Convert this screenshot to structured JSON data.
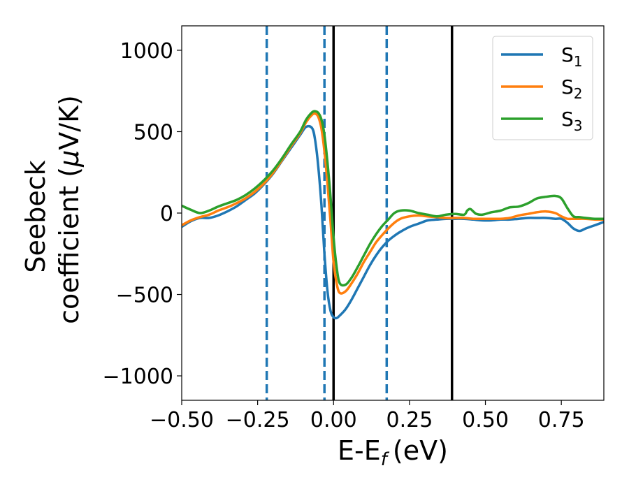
{
  "chart_data": {
    "type": "line",
    "xlabel": "E-E",
    "xlabel_sub": "f",
    "xlabel_unit": "(eV)",
    "ylabel_line1": "Seebeck",
    "ylabel_line2": "coefficient  (",
    "ylabel_mu": "μ",
    "ylabel_unit": "V/K)",
    "xlim": [
      -0.5,
      0.89
    ],
    "ylim": [
      -1150,
      1150
    ],
    "xticks": [
      -0.5,
      -0.25,
      0.0,
      0.25,
      0.5,
      0.75
    ],
    "xtick_labels": [
      "−0.50",
      "−0.25",
      "0.00",
      "0.25",
      "0.50",
      "0.75"
    ],
    "yticks": [
      -1000,
      -500,
      0,
      500,
      1000
    ],
    "ytick_labels": [
      "−1000",
      "−500",
      "0",
      "500",
      "1000"
    ],
    "grid": false,
    "legend_position": "top-right",
    "series": [
      {
        "name": "S",
        "sub": "1",
        "color": "#1f77b4",
        "x": [
          -0.5,
          -0.47,
          -0.44,
          -0.41,
          -0.38,
          -0.35,
          -0.32,
          -0.29,
          -0.26,
          -0.23,
          -0.2,
          -0.17,
          -0.14,
          -0.11,
          -0.09,
          -0.07,
          -0.06,
          -0.05,
          -0.04,
          -0.03,
          -0.02,
          -0.01,
          0.0,
          0.01,
          0.02,
          0.04,
          0.06,
          0.08,
          0.1,
          0.12,
          0.14,
          0.16,
          0.18,
          0.2,
          0.22,
          0.25,
          0.28,
          0.31,
          0.34,
          0.37,
          0.4,
          0.43,
          0.46,
          0.49,
          0.52,
          0.55,
          0.58,
          0.61,
          0.64,
          0.67,
          0.7,
          0.73,
          0.75,
          0.77,
          0.79,
          0.81,
          0.83,
          0.86,
          0.89
        ],
        "y": [
          -85,
          -50,
          -30,
          -30,
          -15,
          10,
          40,
          80,
          120,
          175,
          240,
          320,
          400,
          480,
          530,
          520,
          440,
          280,
          50,
          -250,
          -480,
          -600,
          -640,
          -645,
          -630,
          -590,
          -530,
          -460,
          -390,
          -320,
          -260,
          -210,
          -170,
          -140,
          -115,
          -85,
          -65,
          -45,
          -40,
          -35,
          -35,
          -35,
          -40,
          -45,
          -45,
          -40,
          -40,
          -35,
          -30,
          -30,
          -30,
          -35,
          -35,
          -60,
          -95,
          -110,
          -95,
          -75,
          -55
        ]
      },
      {
        "name": "S",
        "sub": "2",
        "color": "#ff7f0e",
        "x": [
          -0.5,
          -0.47,
          -0.44,
          -0.41,
          -0.38,
          -0.35,
          -0.32,
          -0.29,
          -0.26,
          -0.23,
          -0.2,
          -0.17,
          -0.14,
          -0.11,
          -0.09,
          -0.07,
          -0.06,
          -0.05,
          -0.04,
          -0.03,
          -0.02,
          -0.01,
          0.0,
          0.01,
          0.02,
          0.04,
          0.06,
          0.08,
          0.1,
          0.12,
          0.14,
          0.16,
          0.18,
          0.2,
          0.22,
          0.25,
          0.28,
          0.31,
          0.34,
          0.37,
          0.4,
          0.43,
          0.46,
          0.49,
          0.52,
          0.55,
          0.58,
          0.61,
          0.64,
          0.67,
          0.7,
          0.73,
          0.75,
          0.77,
          0.79,
          0.81,
          0.83,
          0.86,
          0.89
        ],
        "y": [
          -75,
          -45,
          -25,
          -10,
          15,
          35,
          60,
          90,
          130,
          180,
          245,
          325,
          410,
          490,
          560,
          605,
          610,
          590,
          520,
          380,
          180,
          -50,
          -300,
          -430,
          -490,
          -480,
          -430,
          -370,
          -300,
          -240,
          -180,
          -135,
          -95,
          -60,
          -35,
          -20,
          -15,
          -20,
          -25,
          -30,
          -30,
          -30,
          -35,
          -35,
          -35,
          -35,
          -30,
          -15,
          -5,
          5,
          10,
          0,
          -20,
          -35,
          -35,
          -35,
          -35,
          -40,
          -40
        ]
      },
      {
        "name": "S",
        "sub": "3",
        "color": "#2ca02c",
        "x": [
          -0.5,
          -0.47,
          -0.44,
          -0.41,
          -0.38,
          -0.35,
          -0.32,
          -0.29,
          -0.26,
          -0.23,
          -0.2,
          -0.17,
          -0.14,
          -0.11,
          -0.09,
          -0.07,
          -0.06,
          -0.05,
          -0.04,
          -0.03,
          -0.02,
          -0.01,
          0.0,
          0.01,
          0.02,
          0.04,
          0.06,
          0.08,
          0.1,
          0.12,
          0.14,
          0.16,
          0.18,
          0.2,
          0.22,
          0.25,
          0.28,
          0.31,
          0.34,
          0.37,
          0.4,
          0.43,
          0.44,
          0.45,
          0.46,
          0.47,
          0.49,
          0.52,
          0.55,
          0.58,
          0.61,
          0.64,
          0.67,
          0.7,
          0.73,
          0.75,
          0.77,
          0.79,
          0.81,
          0.83,
          0.86,
          0.89
        ],
        "y": [
          45,
          20,
          0,
          15,
          40,
          60,
          80,
          110,
          150,
          200,
          260,
          335,
          420,
          500,
          575,
          620,
          625,
          615,
          575,
          480,
          310,
          100,
          -150,
          -330,
          -430,
          -440,
          -395,
          -330,
          -260,
          -190,
          -130,
          -80,
          -40,
          0,
          15,
          15,
          0,
          -10,
          -20,
          -10,
          -5,
          -10,
          15,
          25,
          10,
          -5,
          -10,
          5,
          15,
          35,
          40,
          60,
          90,
          100,
          105,
          90,
          30,
          -20,
          -25,
          -30,
          -35,
          -35
        ]
      }
    ],
    "vlines_dashed": {
      "color": "#1f77b4",
      "x": [
        -0.22,
        -0.03,
        0.175
      ]
    },
    "vlines_solid": {
      "color": "#000000",
      "x": [
        0.0,
        0.39
      ]
    }
  }
}
